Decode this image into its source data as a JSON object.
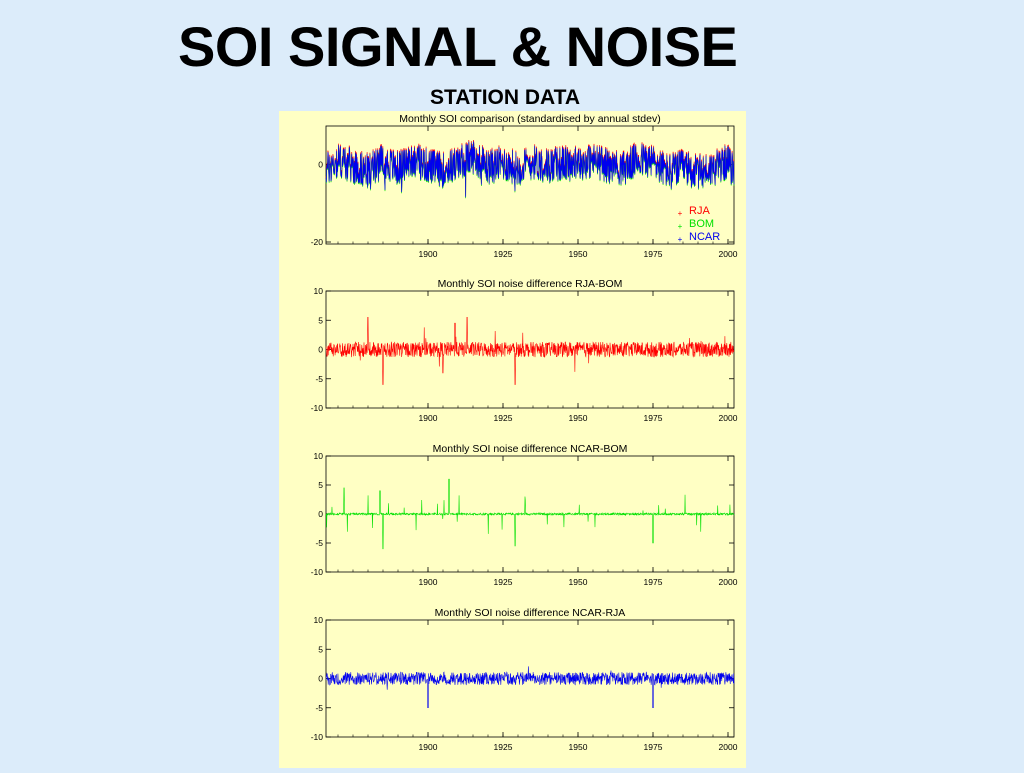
{
  "slide": {
    "title": "SOI SIGNAL & NOISE",
    "subtitle": "STATION DATA",
    "background_color": "#dcecfa",
    "panel_color": "#ffffc4"
  },
  "chart_data": [
    {
      "type": "line",
      "title": "Monthly SOI comparison (standardised by annual stdev)",
      "x_ticks": [
        "1900",
        "1925",
        "1950",
        "1975",
        "2000"
      ],
      "y_ticks": [
        "0",
        "-20"
      ],
      "xlim": [
        1866,
        2002
      ],
      "ylim": [
        -20,
        10
      ],
      "grid": false,
      "legend_position": "bottom-right",
      "series": [
        {
          "name": "RJA",
          "color": "#ff0000"
        },
        {
          "name": "BOM",
          "color": "#00e000"
        },
        {
          "name": "NCAR",
          "color": "#0000ee"
        }
      ],
      "x": [
        1866,
        1870,
        1875,
        1880,
        1885,
        1890,
        1895,
        1900,
        1905,
        1910,
        1915,
        1920,
        1925,
        1930,
        1935,
        1940,
        1945,
        1950,
        1955,
        1960,
        1965,
        1970,
        1975,
        1980,
        1985,
        1990,
        1995,
        2000,
        2002
      ],
      "values": [
        -4,
        3,
        -1,
        -5,
        2,
        -3,
        4,
        -1,
        -4,
        1,
        6,
        -2,
        1,
        -3,
        2,
        -1,
        1,
        0,
        3,
        -1,
        -3,
        4,
        2,
        -5,
        -2,
        -6,
        -3,
        2,
        -6
      ]
    },
    {
      "type": "line",
      "title": "Monthly SOI noise difference RJA-BOM",
      "x_ticks": [
        "1900",
        "1925",
        "1950",
        "1975",
        "2000"
      ],
      "y_ticks": [
        "10",
        "5",
        "0",
        "-5",
        "-10"
      ],
      "xlim": [
        1866,
        2002
      ],
      "ylim": [
        -10,
        10
      ],
      "grid": false,
      "series": [
        {
          "color": "#ff0000"
        }
      ],
      "x": [
        1866,
        1870,
        1880,
        1884,
        1885,
        1890,
        1895,
        1899,
        1900,
        1905,
        1909,
        1911,
        1913,
        1915,
        1920,
        1929,
        1930,
        1940,
        1950,
        1960,
        1970,
        1980,
        1990,
        2000,
        2002
      ],
      "values": [
        -3,
        0.5,
        5.5,
        0,
        -6,
        1,
        -1,
        0.5,
        3,
        -4,
        4.5,
        -3,
        5.5,
        0.5,
        -0.5,
        -6,
        0.5,
        0,
        -0.5,
        0.5,
        0,
        -1,
        0.5,
        0,
        -1
      ]
    },
    {
      "type": "line",
      "title": "Monthly SOI noise difference NCAR-BOM",
      "x_ticks": [
        "1900",
        "1925",
        "1950",
        "1975",
        "2000"
      ],
      "y_ticks": [
        "10",
        "5",
        "0",
        "-5",
        "-10"
      ],
      "xlim": [
        1866,
        2002
      ],
      "ylim": [
        -10,
        10
      ],
      "grid": false,
      "series": [
        {
          "color": "#00e000"
        }
      ],
      "x": [
        1866,
        1870,
        1872,
        1884,
        1885,
        1890,
        1896,
        1900,
        1904,
        1907,
        1912,
        1920,
        1929,
        1930,
        1945,
        1960,
        1971,
        1975,
        1980,
        1990,
        2000,
        2002
      ],
      "values": [
        -3,
        0,
        4.5,
        4,
        -6,
        2,
        2.5,
        -2,
        -3,
        6,
        3,
        3.5,
        -5.5,
        0,
        2.5,
        2,
        3,
        -5,
        1.5,
        1.5,
        2,
        -2
      ]
    },
    {
      "type": "line",
      "title": "Monthly SOI noise difference NCAR-RJA",
      "x_ticks": [
        "1900",
        "1925",
        "1950",
        "1975",
        "2000"
      ],
      "y_ticks": [
        "10",
        "5",
        "0",
        "-5",
        "-10"
      ],
      "xlim": [
        1866,
        2002
      ],
      "ylim": [
        -10,
        10
      ],
      "grid": false,
      "series": [
        {
          "color": "#0000ee"
        }
      ],
      "x": [
        1866,
        1870,
        1880,
        1885,
        1895,
        1900,
        1910,
        1920,
        1930,
        1937,
        1940,
        1950,
        1960,
        1970,
        1974,
        1975,
        1980,
        1990,
        2000,
        2002
      ],
      "values": [
        -1,
        1,
        -1,
        1,
        -1,
        -5,
        1,
        -1,
        1,
        3,
        -1,
        1,
        -1,
        1,
        2,
        -5,
        1,
        -1,
        1,
        -1
      ]
    }
  ]
}
